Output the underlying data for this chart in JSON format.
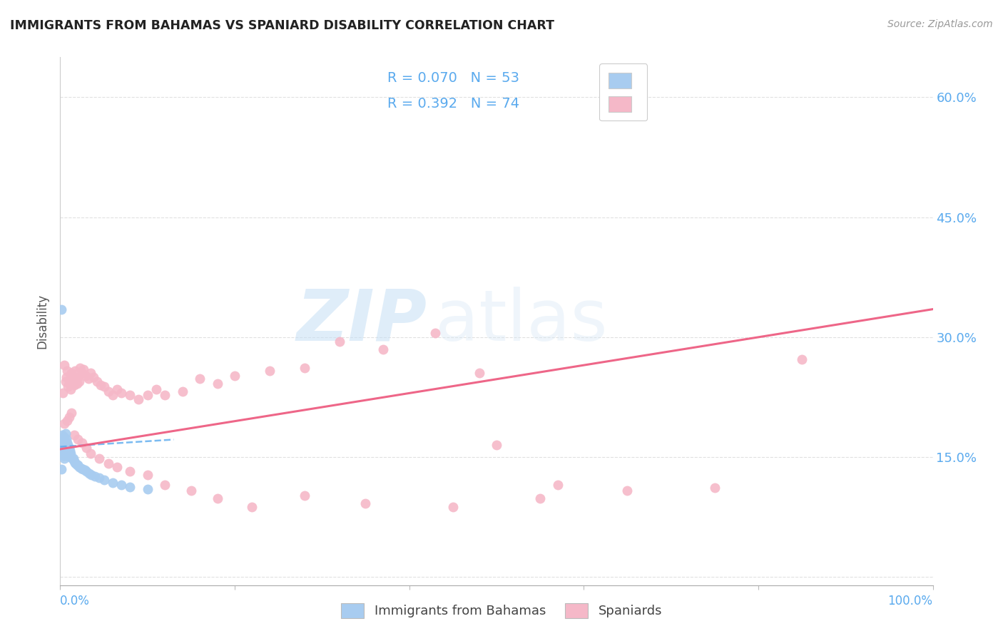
{
  "title": "IMMIGRANTS FROM BAHAMAS VS SPANIARD DISABILITY CORRELATION CHART",
  "source": "Source: ZipAtlas.com",
  "ylabel": "Disability",
  "watermark_zip": "ZIP",
  "watermark_atlas": "atlas",
  "legend_text1": "R = 0.070   N = 53",
  "legend_text2": "R = 0.392   N = 74",
  "color_blue": "#a8ccf0",
  "color_pink": "#f5b8c8",
  "color_blue_text": "#5aaaee",
  "color_pink_text": "#ee6688",
  "color_grid": "#e0e0e0",
  "blue_scatter_x": [
    0.001,
    0.002,
    0.002,
    0.003,
    0.003,
    0.003,
    0.004,
    0.004,
    0.004,
    0.005,
    0.005,
    0.005,
    0.005,
    0.006,
    0.006,
    0.006,
    0.006,
    0.007,
    0.007,
    0.007,
    0.008,
    0.008,
    0.008,
    0.009,
    0.009,
    0.01,
    0.01,
    0.011,
    0.011,
    0.012,
    0.013,
    0.014,
    0.015,
    0.016,
    0.017,
    0.018,
    0.019,
    0.02,
    0.022,
    0.024,
    0.026,
    0.028,
    0.03,
    0.033,
    0.036,
    0.04,
    0.045,
    0.05,
    0.06,
    0.07,
    0.08,
    0.1,
    0.001
  ],
  "blue_scatter_y": [
    0.135,
    0.178,
    0.158,
    0.172,
    0.165,
    0.155,
    0.168,
    0.16,
    0.152,
    0.175,
    0.165,
    0.158,
    0.148,
    0.18,
    0.17,
    0.162,
    0.155,
    0.172,
    0.163,
    0.156,
    0.168,
    0.16,
    0.152,
    0.165,
    0.158,
    0.162,
    0.155,
    0.158,
    0.152,
    0.155,
    0.15,
    0.148,
    0.148,
    0.145,
    0.143,
    0.142,
    0.14,
    0.14,
    0.138,
    0.136,
    0.135,
    0.134,
    0.132,
    0.13,
    0.128,
    0.126,
    0.124,
    0.122,
    0.118,
    0.115,
    0.113,
    0.11,
    0.335
  ],
  "pink_scatter_x": [
    0.003,
    0.005,
    0.006,
    0.007,
    0.008,
    0.009,
    0.01,
    0.011,
    0.012,
    0.013,
    0.014,
    0.015,
    0.016,
    0.017,
    0.018,
    0.019,
    0.02,
    0.022,
    0.023,
    0.025,
    0.027,
    0.029,
    0.032,
    0.035,
    0.038,
    0.042,
    0.046,
    0.05,
    0.055,
    0.06,
    0.065,
    0.07,
    0.08,
    0.09,
    0.1,
    0.11,
    0.12,
    0.14,
    0.16,
    0.18,
    0.2,
    0.24,
    0.28,
    0.32,
    0.37,
    0.43,
    0.5,
    0.57,
    0.65,
    0.75,
    0.85,
    0.005,
    0.008,
    0.01,
    0.013,
    0.016,
    0.02,
    0.025,
    0.03,
    0.035,
    0.045,
    0.055,
    0.065,
    0.08,
    0.1,
    0.12,
    0.15,
    0.18,
    0.22,
    0.28,
    0.35,
    0.45,
    0.55,
    0.48
  ],
  "pink_scatter_y": [
    0.23,
    0.265,
    0.245,
    0.25,
    0.258,
    0.238,
    0.242,
    0.248,
    0.235,
    0.255,
    0.25,
    0.245,
    0.24,
    0.258,
    0.248,
    0.242,
    0.25,
    0.245,
    0.262,
    0.255,
    0.26,
    0.252,
    0.248,
    0.255,
    0.25,
    0.245,
    0.24,
    0.238,
    0.232,
    0.228,
    0.235,
    0.23,
    0.228,
    0.222,
    0.228,
    0.235,
    0.228,
    0.232,
    0.248,
    0.242,
    0.252,
    0.258,
    0.262,
    0.295,
    0.285,
    0.305,
    0.165,
    0.115,
    0.108,
    0.112,
    0.272,
    0.192,
    0.196,
    0.2,
    0.205,
    0.178,
    0.172,
    0.168,
    0.162,
    0.155,
    0.148,
    0.142,
    0.138,
    0.132,
    0.128,
    0.115,
    0.108,
    0.098,
    0.088,
    0.102,
    0.092,
    0.088,
    0.098,
    0.255
  ],
  "blue_trend_x": [
    0.0,
    0.13
  ],
  "blue_trend_y": [
    0.163,
    0.172
  ],
  "pink_trend_x": [
    0.0,
    1.0
  ],
  "pink_trend_y": [
    0.16,
    0.335
  ],
  "xlim": [
    0.0,
    1.0
  ],
  "ylim": [
    -0.01,
    0.65
  ],
  "yticks": [
    0.0,
    0.15,
    0.3,
    0.45,
    0.6
  ],
  "ytick_labels_right": [
    "",
    "15.0%",
    "30.0%",
    "45.0%",
    "60.0%"
  ]
}
